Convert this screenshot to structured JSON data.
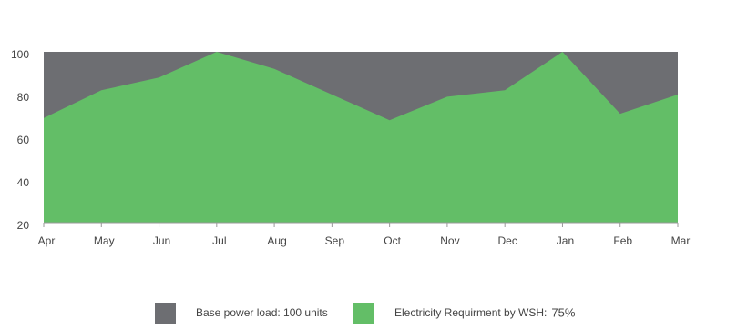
{
  "chart_data": {
    "type": "area",
    "categories": [
      "Apr",
      "May",
      "Jun",
      "Jul",
      "Aug",
      "Sep",
      "Oct",
      "Nov",
      "Dec",
      "Jan",
      "Feb",
      "Mar"
    ],
    "series": [
      {
        "name": "Base power load: 100 units",
        "color": "#6d6e72",
        "values": [
          100,
          100,
          100,
          100,
          100,
          100,
          100,
          100,
          100,
          100,
          100,
          100
        ]
      },
      {
        "name": "Electricity Requirment by WSH:",
        "legend_note": "75%",
        "color": "#63be67",
        "values": [
          69,
          82,
          88,
          100,
          92,
          80,
          68,
          79,
          82,
          100,
          71,
          80
        ]
      }
    ],
    "ylim": [
      20,
      100
    ],
    "yticks": [
      20,
      40,
      60,
      80,
      100
    ],
    "grid": false
  }
}
